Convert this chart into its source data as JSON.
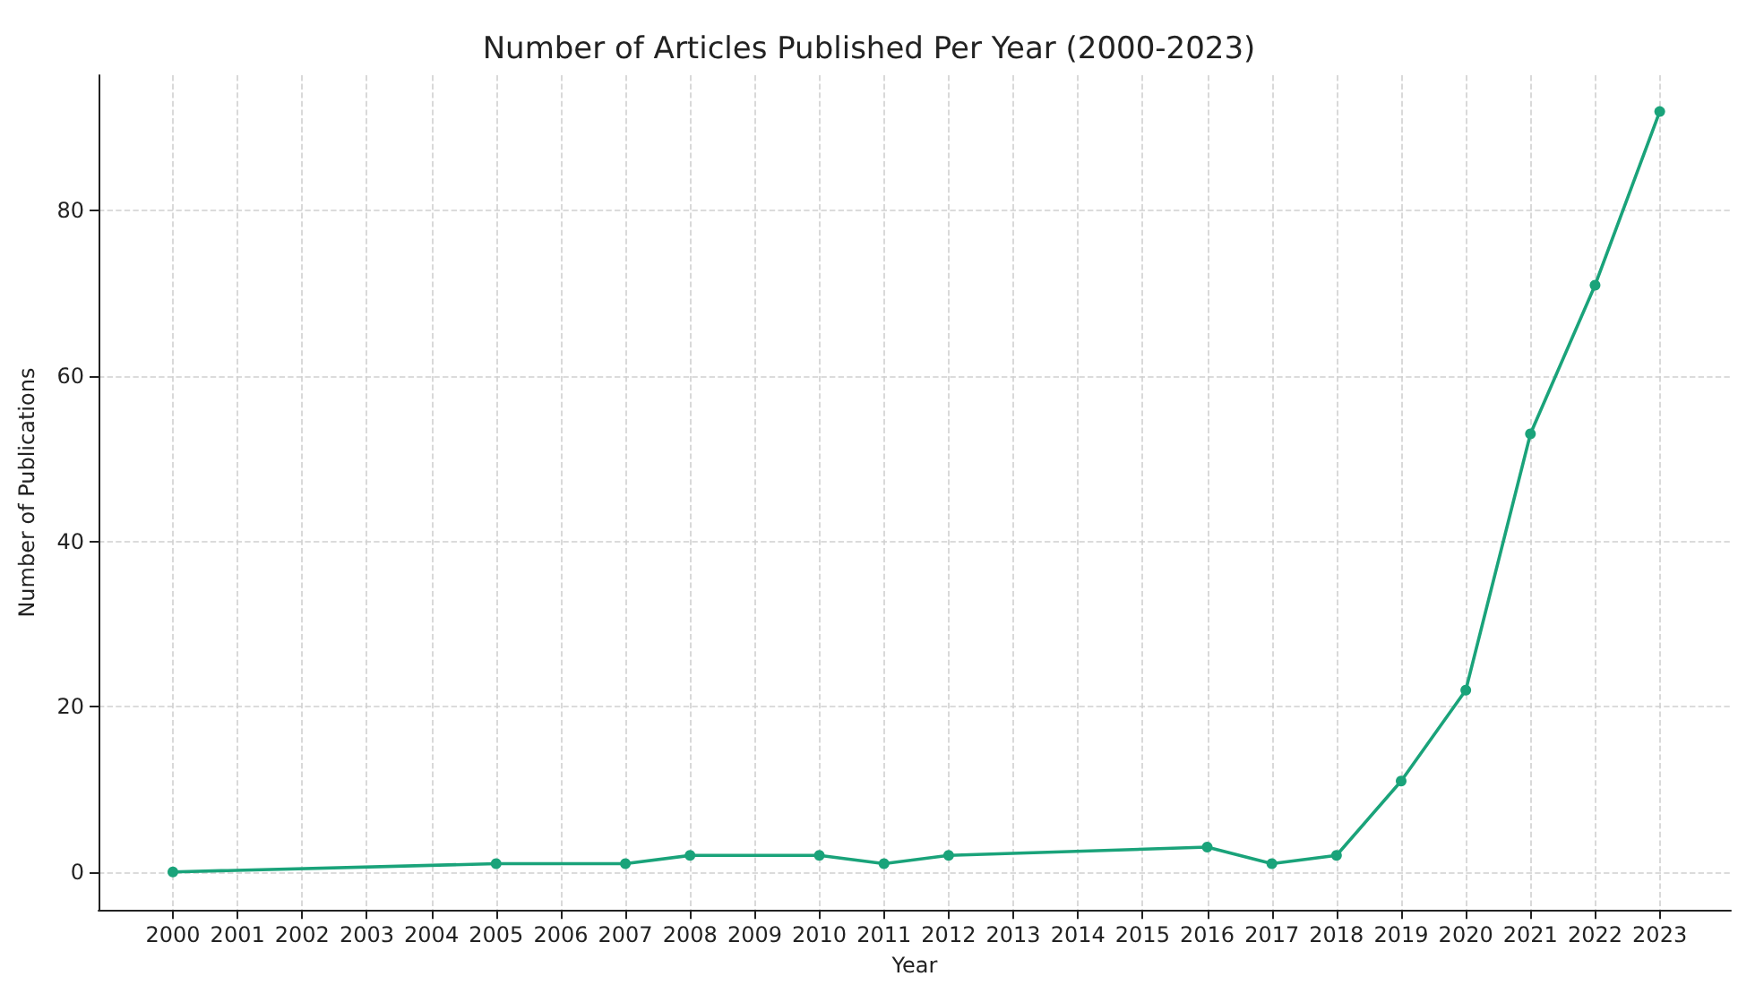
{
  "chart_data": {
    "type": "line",
    "title": "Number of Articles Published Per Year (2000-2023)",
    "xlabel": "Year",
    "ylabel": "Number of Publications",
    "x": [
      2000,
      2005,
      2007,
      2008,
      2010,
      2011,
      2012,
      2016,
      2017,
      2018,
      2019,
      2020,
      2021,
      2022,
      2023
    ],
    "series": [
      {
        "color": "#1aa37a",
        "values": [
          0,
          1,
          1,
          2,
          2,
          1,
          2,
          3,
          1,
          2,
          11,
          22,
          53,
          71,
          92
        ]
      }
    ],
    "xlim": [
      1998.85,
      2024.1
    ],
    "xticks": [
      2000,
      2001,
      2002,
      2003,
      2004,
      2005,
      2006,
      2007,
      2008,
      2009,
      2010,
      2011,
      2012,
      2013,
      2014,
      2015,
      2016,
      2017,
      2018,
      2019,
      2020,
      2021,
      2022,
      2023
    ],
    "ylim": [
      -4.6,
      96.4
    ],
    "yticks": [
      0,
      20,
      40,
      60,
      80
    ],
    "grid": true,
    "marker": "circle",
    "line_style": "solid"
  }
}
